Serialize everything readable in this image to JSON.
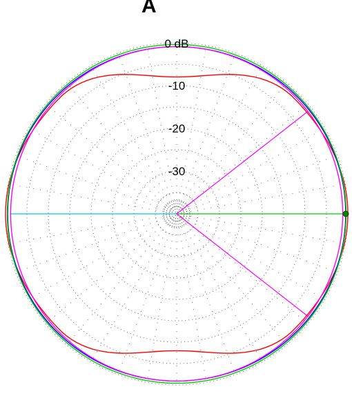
{
  "header_text": "A",
  "chart_data": {
    "type": "polar",
    "title": "",
    "radial_unit": "dB",
    "radial_range_db": [
      -40,
      0
    ],
    "grid": true,
    "grid_style": "dotted",
    "radial_tick_labels": [
      "0 dB",
      "-10",
      "-20",
      "-30"
    ],
    "radial_ticks_db": [
      0,
      -10,
      -20,
      -30
    ],
    "series": [
      {
        "color": "#ff0000",
        "shape": "figure-eight",
        "gain_db_at_deg": {
          "0": 0,
          "45": -1.5,
          "90": -8.0,
          "135": -1.5,
          "180": 0,
          "225": -1.5,
          "270": -8.0,
          "315": -1.5
        }
      },
      {
        "color": "#0000ff",
        "shape": "near-circle",
        "gain_db_at_deg": {
          "0": -0.5,
          "90": -0.9,
          "180": -0.5,
          "270": -0.9
        }
      },
      {
        "color": "#00cc00",
        "shape": "circle",
        "gain_db_at_deg": {
          "0": -0.4,
          "90": -0.4,
          "180": -0.4,
          "270": -0.4
        }
      },
      {
        "color": "#ff00ff",
        "shape": "circle",
        "gain_db_at_deg": {
          "0": -1.2,
          "90": -0.9,
          "180": -1.2,
          "270": -0.9
        }
      }
    ],
    "reference_lines": [
      {
        "color": "#00cccc",
        "from_deg": 180,
        "to_deg": 180
      },
      {
        "color": "#00cc00",
        "from_deg": 0,
        "to_deg": 0
      },
      {
        "color": "#ff00ff",
        "angle_deg": 38
      },
      {
        "color": "#ff00ff",
        "angle_deg": -38
      }
    ],
    "marker": {
      "color": "#008800",
      "angle_deg": 0,
      "gain_db": 0
    },
    "colors": {
      "grid": "#666666",
      "background": "#ffffff"
    }
  }
}
